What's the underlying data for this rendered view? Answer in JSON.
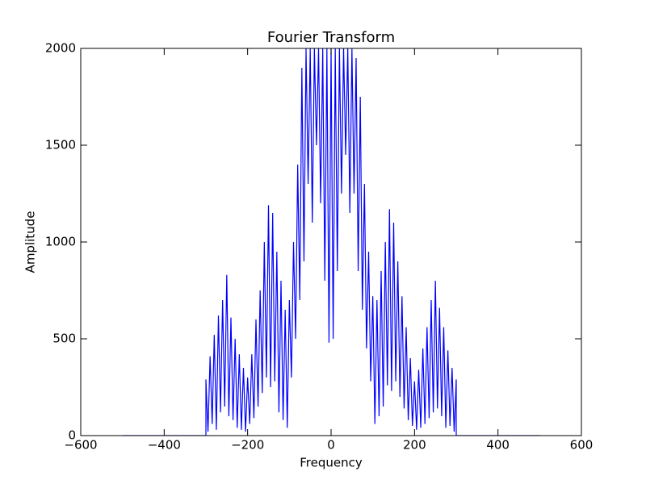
{
  "chart_data": {
    "type": "line",
    "title": "Fourier Transform",
    "x_label": "Frequency",
    "y_label": "Amplitude",
    "xlim": [
      -600,
      600
    ],
    "ylim": [
      0,
      2000
    ],
    "xticks": [
      {
        "value": -600,
        "label": "−600"
      },
      {
        "value": -400,
        "label": "−400"
      },
      {
        "value": -200,
        "label": "−200"
      },
      0,
      200,
      400,
      600
    ],
    "yticks": [
      0,
      500,
      1000,
      1500,
      2000
    ],
    "series": [
      {
        "color": "#0000ff",
        "x": [
          -500,
          -300,
          -300,
          -295,
          -290,
          -285,
          -280,
          -275,
          -270,
          -265,
          -260,
          -255,
          -250,
          -245,
          -240,
          -235,
          -230,
          -225,
          -220,
          -215,
          -210,
          -205,
          -200,
          -195,
          -190,
          -185,
          -180,
          -175,
          -170,
          -165,
          -160,
          -155,
          -150,
          -145,
          -140,
          -135,
          -130,
          -125,
          -120,
          -115,
          -110,
          -105,
          -100,
          -95,
          -90,
          -85,
          -80,
          -75,
          -70,
          -65,
          -60,
          -55,
          -50,
          -45,
          -40,
          -35,
          -30,
          -25,
          -20,
          -15,
          -10,
          -5,
          0,
          5,
          10,
          15,
          20,
          25,
          30,
          35,
          40,
          45,
          50,
          55,
          60,
          65,
          70,
          75,
          80,
          85,
          90,
          95,
          100,
          105,
          110,
          115,
          120,
          125,
          130,
          135,
          140,
          145,
          150,
          155,
          160,
          165,
          170,
          175,
          180,
          185,
          190,
          195,
          200,
          205,
          210,
          215,
          220,
          225,
          230,
          235,
          240,
          245,
          250,
          255,
          260,
          265,
          270,
          275,
          280,
          285,
          290,
          295,
          300,
          300,
          500
        ],
        "values": [
          0,
          0,
          290,
          20,
          410,
          60,
          520,
          30,
          620,
          120,
          700,
          150,
          830,
          100,
          610,
          80,
          500,
          40,
          420,
          30,
          350,
          20,
          300,
          60,
          420,
          90,
          600,
          150,
          750,
          220,
          1000,
          300,
          1190,
          250,
          1150,
          280,
          950,
          120,
          800,
          80,
          650,
          40,
          700,
          300,
          1000,
          500,
          1400,
          700,
          1900,
          900,
          2000,
          1300,
          2000,
          1100,
          2000,
          1500,
          2000,
          1200,
          2000,
          800,
          2000,
          480,
          2000,
          500,
          2000,
          850,
          2000,
          1250,
          2000,
          1450,
          2000,
          1150,
          2000,
          1250,
          1950,
          850,
          1750,
          650,
          1300,
          450,
          950,
          280,
          720,
          60,
          700,
          100,
          850,
          150,
          1000,
          260,
          1170,
          230,
          1100,
          280,
          900,
          200,
          720,
          140,
          560,
          80,
          400,
          50,
          280,
          30,
          340,
          40,
          450,
          60,
          560,
          90,
          700,
          120,
          800,
          140,
          660,
          100,
          560,
          40,
          440,
          50,
          350,
          20,
          290,
          0,
          0
        ]
      }
    ]
  }
}
